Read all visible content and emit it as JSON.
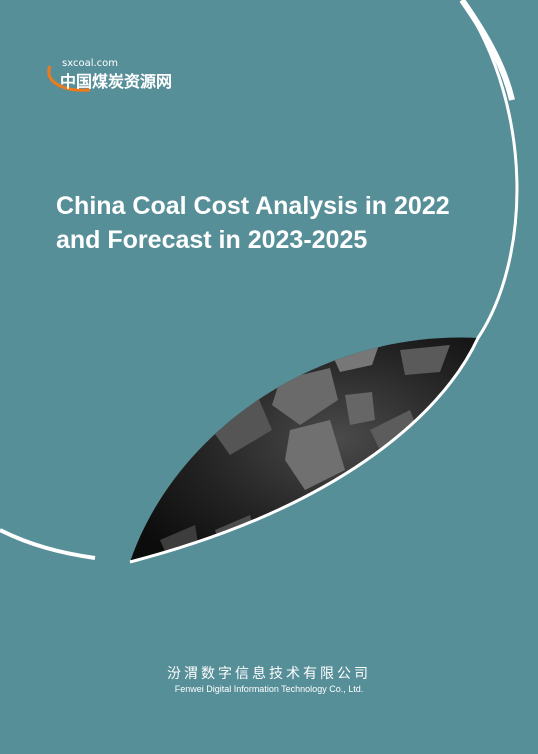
{
  "logo": {
    "domain": "sxcoal.com",
    "name": "中国煤炭资源网"
  },
  "title": {
    "lines": [
      "China Coal Cost Analysis in 2022",
      "and Forecast in 2023-2025"
    ]
  },
  "company": {
    "name_cn": "汾渭数字信息技术有限公司",
    "name_en": "Fenwei Digital Information Technology Co., Ltd."
  }
}
